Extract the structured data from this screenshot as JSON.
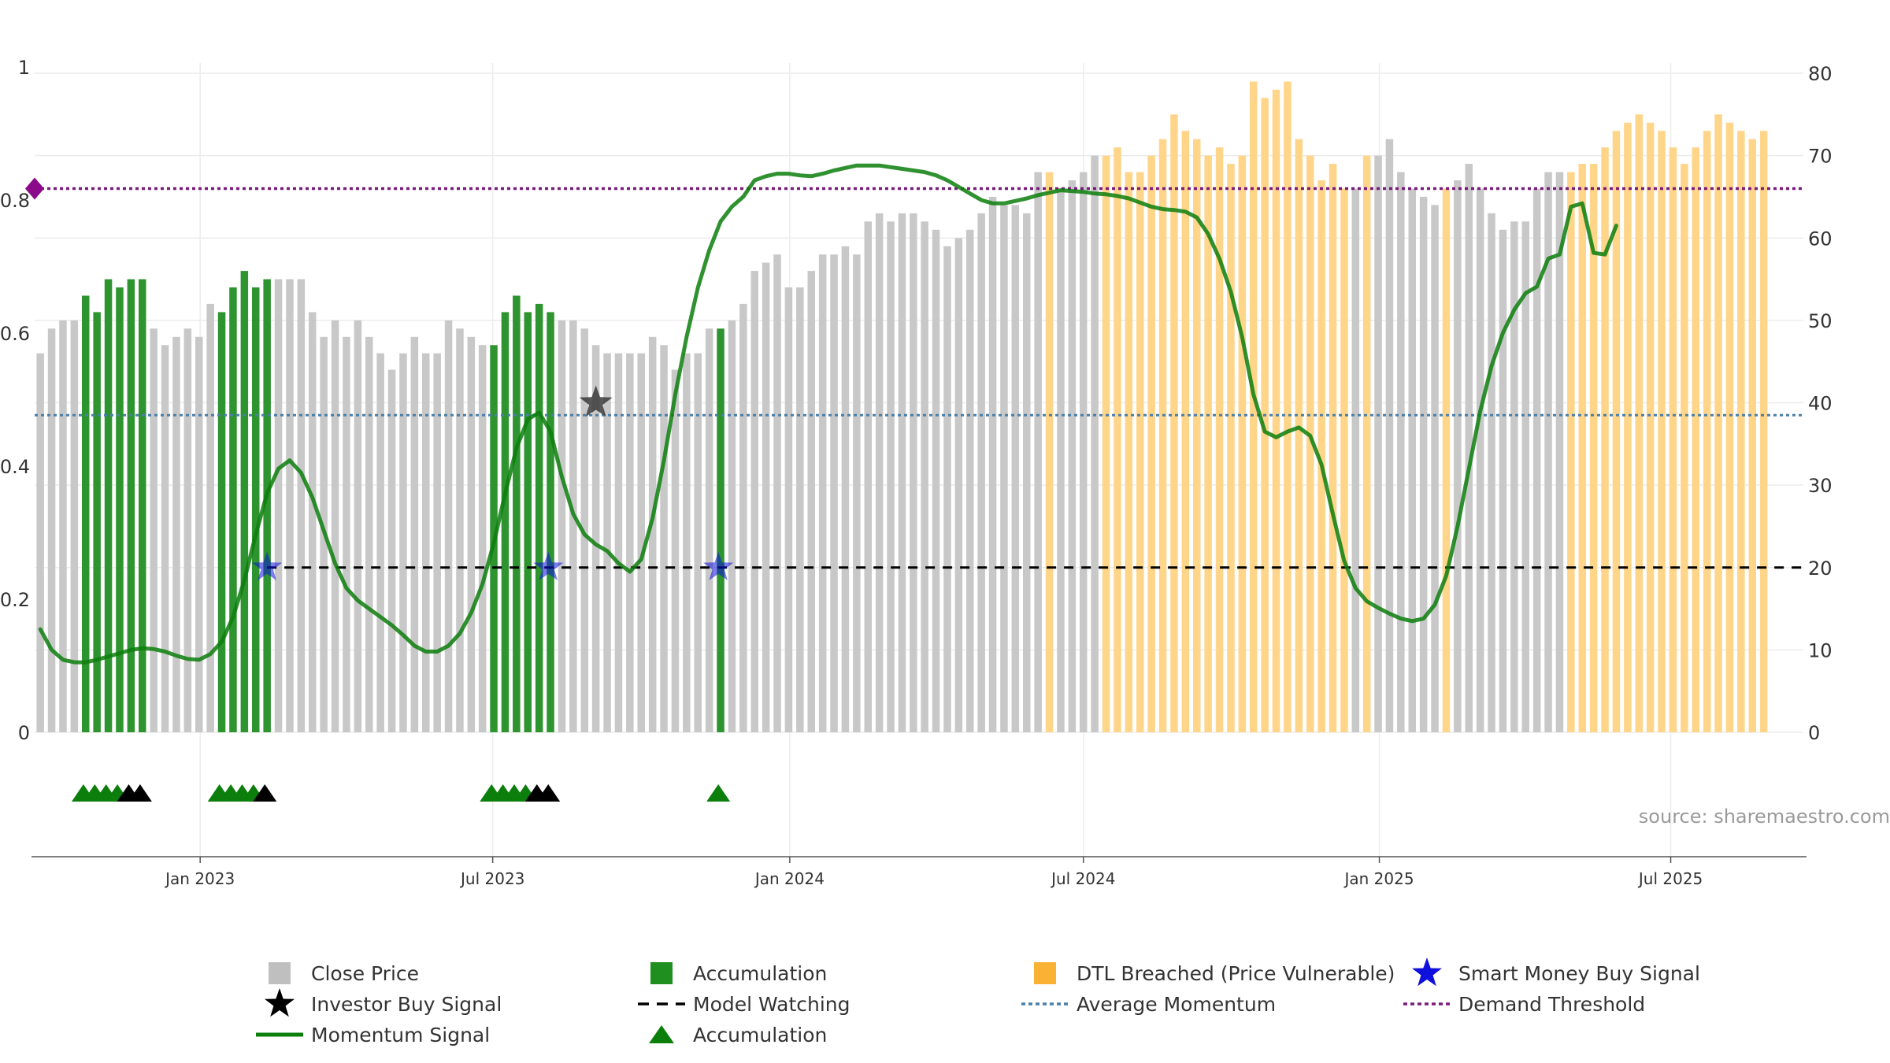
{
  "chart_data": {
    "type": "bar",
    "watermark": "source: sharemaestro.com",
    "left_axis": {
      "range": [
        0,
        1
      ],
      "ticks": [
        {
          "value": 0,
          "label": "0"
        },
        {
          "value": 0.2,
          "label": "0.2"
        },
        {
          "value": 0.4,
          "label": "0.4"
        },
        {
          "value": 0.6,
          "label": "0.6"
        },
        {
          "value": 0.8,
          "label": "0.8"
        },
        {
          "value": 1,
          "label": "1"
        }
      ]
    },
    "right_axis": {
      "range": [
        0,
        80
      ],
      "ticks": [
        {
          "value": 0,
          "label": "0"
        },
        {
          "value": 10,
          "label": "10"
        },
        {
          "value": 20,
          "label": "20"
        },
        {
          "value": 30,
          "label": "30"
        },
        {
          "value": 40,
          "label": "40"
        },
        {
          "value": 50,
          "label": "50"
        },
        {
          "value": 60,
          "label": "60"
        },
        {
          "value": 70,
          "label": "70"
        },
        {
          "value": 80,
          "label": "80"
        }
      ]
    },
    "x_axis": {
      "start_week": 0,
      "end_week": 156,
      "ticks": [
        {
          "week": 14.6,
          "label": "Jan 2023"
        },
        {
          "week": 40.4,
          "label": "Jul 2023"
        },
        {
          "week": 66.6,
          "label": "Jan 2024"
        },
        {
          "week": 92.5,
          "label": "Jul 2024"
        },
        {
          "week": 118.6,
          "label": "Jan 2025"
        },
        {
          "week": 144.3,
          "label": "Jul 2025"
        }
      ]
    },
    "colors": {
      "close": "#c8c8c8",
      "accumulation": "#2e9430",
      "dtl": "#ffd58a",
      "momentum_line": "#0c7e0c",
      "model_watch": "#000000",
      "avg_momentum": "#4a7fa8",
      "demand_threshold": "#7a1a7a",
      "smart_money": "#1010dd",
      "acc_triangle": "#0c7e0c",
      "investor_star": "#000000",
      "threshold_marker": "#8a0a8a"
    },
    "accumulation_ranges": [
      [
        4,
        9
      ],
      [
        16,
        20
      ],
      [
        40,
        45
      ],
      [
        60,
        60
      ]
    ],
    "dtl_ranges": [
      [
        89,
        89
      ],
      [
        94,
        115
      ],
      [
        117,
        117
      ],
      [
        124,
        124
      ],
      [
        135,
        155
      ]
    ],
    "close_prices": [
      46,
      49,
      50,
      50,
      53,
      51,
      55,
      54,
      55,
      55,
      49,
      47,
      48,
      49,
      48,
      52,
      51,
      54,
      56,
      54,
      55,
      55,
      55,
      55,
      51,
      48,
      50,
      48,
      50,
      48,
      46,
      44,
      46,
      48,
      46,
      46,
      50,
      49,
      48,
      47,
      47,
      51,
      53,
      51,
      52,
      51,
      50,
      50,
      49,
      47,
      46,
      46,
      46,
      46,
      48,
      47,
      44,
      46,
      46,
      49,
      49,
      50,
      52,
      56,
      57,
      58,
      54,
      54,
      56,
      58,
      58,
      59,
      58,
      62,
      63,
      62,
      63,
      63,
      62,
      61,
      59,
      60,
      61,
      63,
      65,
      64,
      64,
      63,
      68,
      68,
      66,
      67,
      68,
      70,
      70,
      71,
      68,
      68,
      70,
      72,
      75,
      73,
      72,
      70,
      71,
      69,
      70,
      79,
      77,
      78,
      79,
      72,
      70,
      67,
      69,
      66,
      66,
      70,
      70,
      72,
      68,
      66,
      65,
      64,
      66,
      67,
      69,
      66,
      63,
      61,
      62,
      62,
      66,
      68,
      68,
      68,
      69,
      69,
      71,
      73,
      74,
      75,
      74,
      73,
      71,
      69,
      71,
      73,
      75,
      74,
      73,
      72,
      73
    ],
    "momentum_signal": [
      12.5,
      10,
      8.8,
      8.5,
      8.5,
      8.8,
      9.2,
      9.6,
      10,
      10.2,
      10.1,
      9.8,
      9.3,
      8.9,
      8.8,
      9.5,
      11,
      14,
      18.5,
      24,
      29,
      32,
      33,
      31.5,
      28.5,
      24.5,
      20.5,
      17.5,
      16,
      15,
      14,
      13,
      11.8,
      10.5,
      9.8,
      9.8,
      10.5,
      12,
      14.5,
      18,
      23,
      29,
      34.5,
      38,
      38.8,
      36.5,
      31,
      26.5,
      24,
      22.8,
      22,
      20.5,
      19.5,
      21,
      26,
      33,
      41,
      48,
      54,
      58.5,
      62,
      63.8,
      65,
      67,
      67.5,
      67.8,
      67.8,
      67.6,
      67.5,
      67.8,
      68.2,
      68.5,
      68.8,
      68.8,
      68.8,
      68.6,
      68.4,
      68.2,
      68,
      67.6,
      67,
      66.2,
      65.4,
      64.6,
      64.2,
      64.2,
      64.5,
      64.8,
      65.2,
      65.5,
      65.8,
      65.7,
      65.6,
      65.4,
      65.3,
      65.1,
      64.8,
      64.3,
      63.8,
      63.5,
      63.4,
      63.2,
      62.5,
      60.5,
      57.5,
      53.5,
      48,
      41,
      36.5,
      35.8,
      36.5,
      37,
      36,
      32.5,
      26.5,
      20.8,
      17.5,
      15.9,
      15.1,
      14.4,
      13.8,
      13.5,
      13.8,
      15.5,
      19,
      25,
      32,
      39,
      44.5,
      48.5,
      51.3,
      53.3,
      54.1,
      57.5,
      58,
      63.8,
      64.2,
      58.2,
      58,
      61.5
    ],
    "investor_buy_signals": [
      {
        "week": 49.5,
        "value": 40
      }
    ],
    "smart_money_buy_signals": [
      {
        "week": 20.5,
        "value": 20
      },
      {
        "week": 45.3,
        "value": 20
      },
      {
        "week": 60.3,
        "value": 20
      }
    ],
    "model_watching_level": 20,
    "model_watching_start_week": 20.5,
    "average_momentum": 38.5,
    "demand_threshold": 66,
    "signal_row": [
      {
        "week": 4.3,
        "kind": "accumulation"
      },
      {
        "week": 5.3,
        "kind": "accumulation"
      },
      {
        "week": 6.3,
        "kind": "accumulation"
      },
      {
        "week": 7.3,
        "kind": "accumulation"
      },
      {
        "week": 8.3,
        "kind": "investor"
      },
      {
        "week": 9.3,
        "kind": "investor"
      },
      {
        "week": 16.3,
        "kind": "accumulation"
      },
      {
        "week": 17.3,
        "kind": "accumulation"
      },
      {
        "week": 18.3,
        "kind": "accumulation"
      },
      {
        "week": 19.3,
        "kind": "accumulation"
      },
      {
        "week": 20.3,
        "kind": "investor"
      },
      {
        "week": 40.3,
        "kind": "accumulation"
      },
      {
        "week": 41.3,
        "kind": "accumulation"
      },
      {
        "week": 42.3,
        "kind": "accumulation"
      },
      {
        "week": 43.3,
        "kind": "accumulation"
      },
      {
        "week": 44.3,
        "kind": "investor"
      },
      {
        "week": 45.3,
        "kind": "investor"
      },
      {
        "week": 60.3,
        "kind": "accumulation"
      }
    ],
    "legend": [
      {
        "label": "Close Price",
        "symbol": "square",
        "color": "#bfbfbf"
      },
      {
        "label": "Accumulation",
        "symbol": "square",
        "color": "#1f8f1f"
      },
      {
        "label": "DTL Breached (Price Vulnerable)",
        "symbol": "square",
        "color": "#f9b233"
      },
      {
        "label": "Smart Money Buy Signal",
        "symbol": "star",
        "color": "#1010dd"
      },
      {
        "label": "Investor Buy Signal",
        "symbol": "star",
        "color": "#000000"
      },
      {
        "label": "Model Watching",
        "symbol": "dash",
        "color": "#000000"
      },
      {
        "label": "Average Momentum",
        "symbol": "dot",
        "color": "#4a7fa8"
      },
      {
        "label": "Demand Threshold",
        "symbol": "dot",
        "color": "#7a1a7a"
      },
      {
        "label": "Momentum Signal",
        "symbol": "line",
        "color": "#0c7e0c"
      },
      {
        "label": "Accumulation",
        "symbol": "triangle",
        "color": "#0c7e0c"
      }
    ]
  }
}
